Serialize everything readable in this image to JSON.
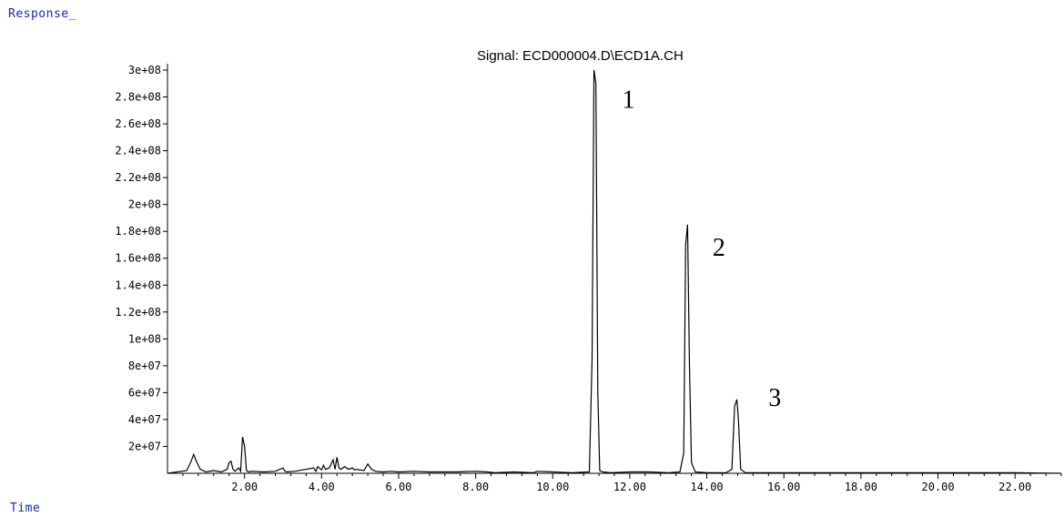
{
  "header": {
    "response_label": "Response_",
    "time_label": "Time"
  },
  "chart_data": {
    "type": "line",
    "title": "Signal: ECD000004.D\\ECD1A.CH",
    "xlabel": "Time",
    "ylabel": "Response_",
    "xlim": [
      0.0,
      23.2
    ],
    "ylim": [
      0,
      300000000
    ],
    "x_ticks": [
      2,
      4,
      6,
      8,
      10,
      12,
      14,
      16,
      18,
      20,
      22
    ],
    "x_tick_labels": [
      "2.00",
      "4.00",
      "6.00",
      "8.00",
      "10.00",
      "12.00",
      "14.00",
      "16.00",
      "18.00",
      "20.00",
      "22.00"
    ],
    "y_ticks": [
      20000000,
      40000000,
      60000000,
      80000000,
      100000000,
      120000000,
      140000000,
      160000000,
      180000000,
      200000000,
      220000000,
      240000000,
      260000000,
      280000000,
      300000000
    ],
    "y_tick_labels": [
      "2e+07",
      "4e+07",
      "6e+07",
      "8e+07",
      "1e+08",
      "1.2e+08",
      "1.4e+08",
      "1.6e+08",
      "1.8e+08",
      "2e+08",
      "2.2e+08",
      "2.4e+08",
      "2.6e+08",
      "2.8e+08",
      "3e+08"
    ],
    "series": [
      {
        "x": [
          0.0,
          0.5,
          0.6,
          0.68,
          0.75,
          0.85,
          1.0,
          1.2,
          1.4,
          1.55,
          1.6,
          1.65,
          1.7,
          1.75,
          1.85,
          1.9,
          1.95,
          2.0,
          2.05,
          2.1,
          2.2,
          2.5,
          2.8,
          3.0,
          3.05,
          3.1,
          3.3,
          3.5,
          3.8,
          3.85,
          3.9,
          4.0,
          4.05,
          4.1,
          4.2,
          4.3,
          4.35,
          4.4,
          4.45,
          4.5,
          4.6,
          4.7,
          4.8,
          4.85,
          4.9,
          5.0,
          5.1,
          5.2,
          5.25,
          5.3,
          5.4,
          5.6,
          5.8,
          6.0,
          6.4,
          6.8,
          7.0,
          7.5,
          8.0,
          8.3,
          8.5,
          9.0,
          9.5,
          9.6,
          10.0,
          10.5,
          10.95,
          11.02,
          11.07,
          11.12,
          11.17,
          11.22,
          11.3,
          11.5,
          12.0,
          12.5,
          13.0,
          13.3,
          13.4,
          13.45,
          13.5,
          13.55,
          13.6,
          13.7,
          14.0,
          14.5,
          14.65,
          14.72,
          14.78,
          14.82,
          14.88,
          15.0,
          15.5,
          16.0,
          18.0,
          20.0,
          22.0,
          23.2
        ],
        "y": [
          0,
          2000000,
          8000000,
          14000000,
          9000000,
          3000000,
          1000000,
          2000000,
          1000000,
          3000000,
          8000000,
          9000000,
          3000000,
          1500000,
          4000000,
          1500000,
          27000000,
          20000000,
          2000000,
          1000000,
          1500000,
          1000000,
          1500000,
          4000000,
          1500000,
          1000000,
          1500000,
          2500000,
          4000000,
          1500000,
          5000000,
          2500000,
          6000000,
          3000000,
          4000000,
          10000000,
          3000000,
          12000000,
          4000000,
          3000000,
          5000000,
          3000000,
          4000000,
          2500000,
          3000000,
          2500000,
          2000000,
          7000000,
          5000000,
          3000000,
          1500000,
          1000000,
          1500000,
          1000000,
          1500000,
          1000000,
          1000000,
          1000000,
          1500000,
          1000000,
          500000,
          1000000,
          500000,
          1500000,
          1000000,
          500000,
          1000000,
          85000000,
          300000000,
          290000000,
          60000000,
          2000000,
          1000000,
          500000,
          1000000,
          1000000,
          500000,
          1000000,
          15000000,
          170000000,
          185000000,
          80000000,
          8000000,
          1000000,
          500000,
          500000,
          3000000,
          50000000,
          55000000,
          40000000,
          3000000,
          500000,
          500000,
          500000,
          500000,
          500000,
          500000,
          0
        ]
      }
    ],
    "annotations": [
      {
        "text": "1",
        "x": 11.8,
        "y": 272000000
      },
      {
        "text": "2",
        "x": 14.15,
        "y": 162000000
      },
      {
        "text": "3",
        "x": 15.6,
        "y": 50000000
      }
    ],
    "grid": false,
    "line_color": "#000000"
  }
}
